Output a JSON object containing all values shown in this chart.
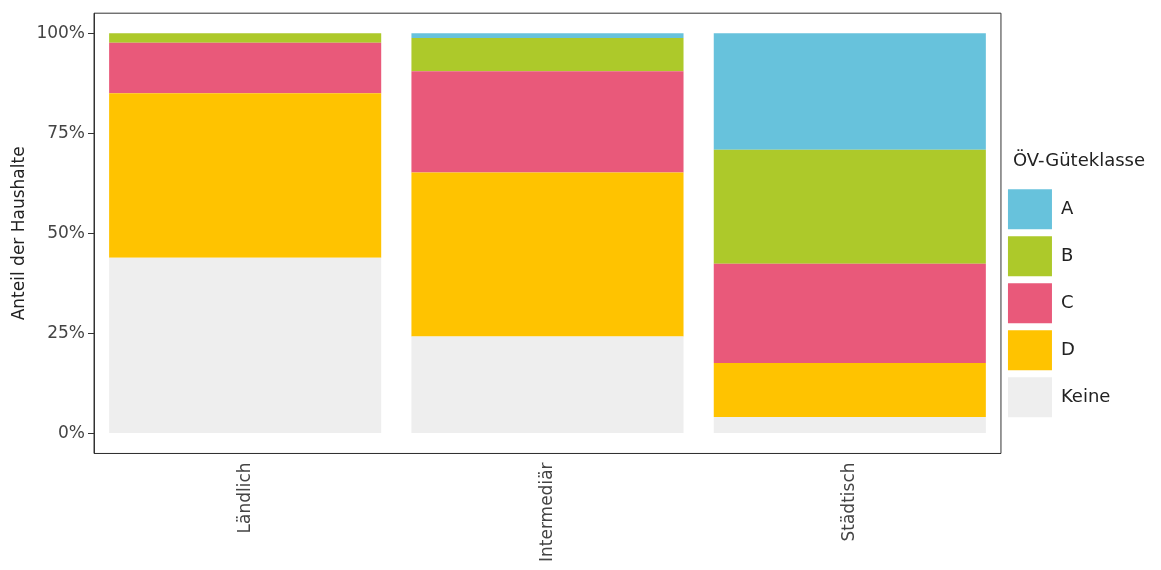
{
  "chart_data": {
    "type": "bar",
    "stacked": true,
    "ylabel": "Anteil der Haushalte",
    "legend_title": "ÖV-Güteklasse",
    "legend": "right",
    "grid": false,
    "categories": [
      "Ländlich",
      "Intermediär",
      "Städtisch"
    ],
    "series": [
      {
        "name": "Keine",
        "color": "#eeeeee",
        "values": [
          43.9,
          24.2,
          4.1
        ]
      },
      {
        "name": "D",
        "color": "#ffc300",
        "values": [
          41.1,
          41.0,
          13.5
        ]
      },
      {
        "name": "C",
        "color": "#e9597a",
        "values": [
          12.6,
          25.3,
          24.8
        ]
      },
      {
        "name": "B",
        "color": "#adc92a",
        "values": [
          2.4,
          8.3,
          28.5
        ]
      },
      {
        "name": "A",
        "color": "#67c2dc",
        "values": [
          0,
          1.2,
          29.1
        ]
      }
    ],
    "ylim": [
      -5,
      105
    ],
    "yticks": [
      {
        "value": 0,
        "label": "0%"
      },
      {
        "value": 25,
        "label": "25%"
      },
      {
        "value": 50,
        "label": "50%"
      },
      {
        "value": 75,
        "label": "75%"
      },
      {
        "value": 100,
        "label": "100%"
      }
    ]
  }
}
